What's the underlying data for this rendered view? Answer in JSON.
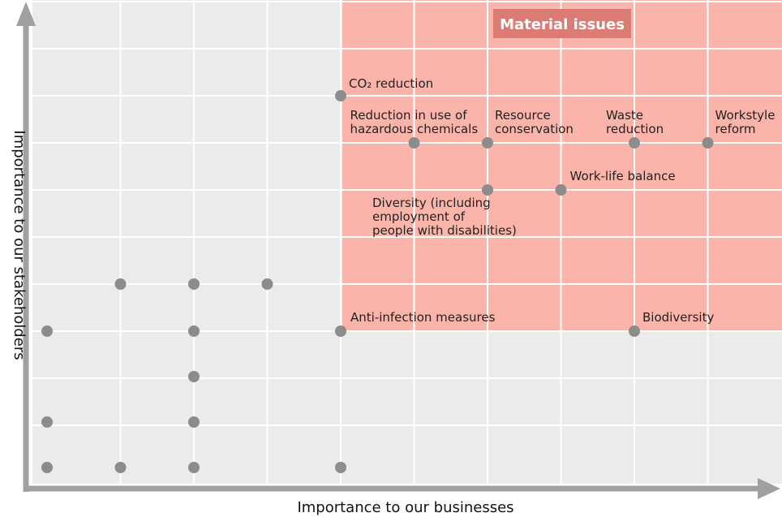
{
  "chart_data": {
    "type": "scatter",
    "title": "",
    "xlabel": "Importance to our businesses",
    "ylabel": "Importance to our stakeholders",
    "badge": "Material issues",
    "grid": true,
    "colors": {
      "background": "#ebebeb",
      "material_zone": "#fbb4aa",
      "badge": "#db7b74",
      "point": "#8c8c8c",
      "grid": "#ffffff",
      "axis": "#a0a0a0"
    },
    "xlim": [
      0,
      10
    ],
    "ylim": [
      0,
      10
    ],
    "material_zone": {
      "x": [
        4,
        10
      ],
      "y": [
        3,
        10
      ]
    },
    "points": [
      {
        "x": 4,
        "y": 8,
        "label": [
          "CO₂ reduction"
        ]
      },
      {
        "x": 5,
        "y": 7,
        "label": [
          "Reduction in use of",
          "hazardous chemicals"
        ]
      },
      {
        "x": 6,
        "y": 7,
        "label": [
          "Resource",
          "conservation"
        ]
      },
      {
        "x": 8,
        "y": 7,
        "label": [
          "Waste",
          "reduction"
        ]
      },
      {
        "x": 9,
        "y": 7,
        "label": [
          "Workstyle",
          "reform"
        ]
      },
      {
        "x": 6,
        "y": 6,
        "label": [
          "Diversity (including",
          "employment of",
          "people with disabilities)"
        ]
      },
      {
        "x": 7,
        "y": 6,
        "label": [
          "Work-life balance"
        ]
      },
      {
        "x": 4,
        "y": 3,
        "label": [
          "Anti-infection measures"
        ]
      },
      {
        "x": 8,
        "y": 3,
        "label": [
          "Biodiversity"
        ]
      },
      {
        "x": 1,
        "y": 4,
        "label": []
      },
      {
        "x": 2,
        "y": 4,
        "label": []
      },
      {
        "x": 3,
        "y": 4,
        "label": []
      },
      {
        "x": 0,
        "y": 3,
        "label": []
      },
      {
        "x": 2,
        "y": 3,
        "label": []
      },
      {
        "x": 2,
        "y": 2,
        "label": []
      },
      {
        "x": 0,
        "y": 1,
        "label": []
      },
      {
        "x": 2,
        "y": 1,
        "label": []
      },
      {
        "x": 0,
        "y": 0,
        "label": []
      },
      {
        "x": 1,
        "y": 0,
        "label": []
      },
      {
        "x": 2,
        "y": 0,
        "label": []
      },
      {
        "x": 4,
        "y": 0,
        "label": []
      }
    ]
  }
}
